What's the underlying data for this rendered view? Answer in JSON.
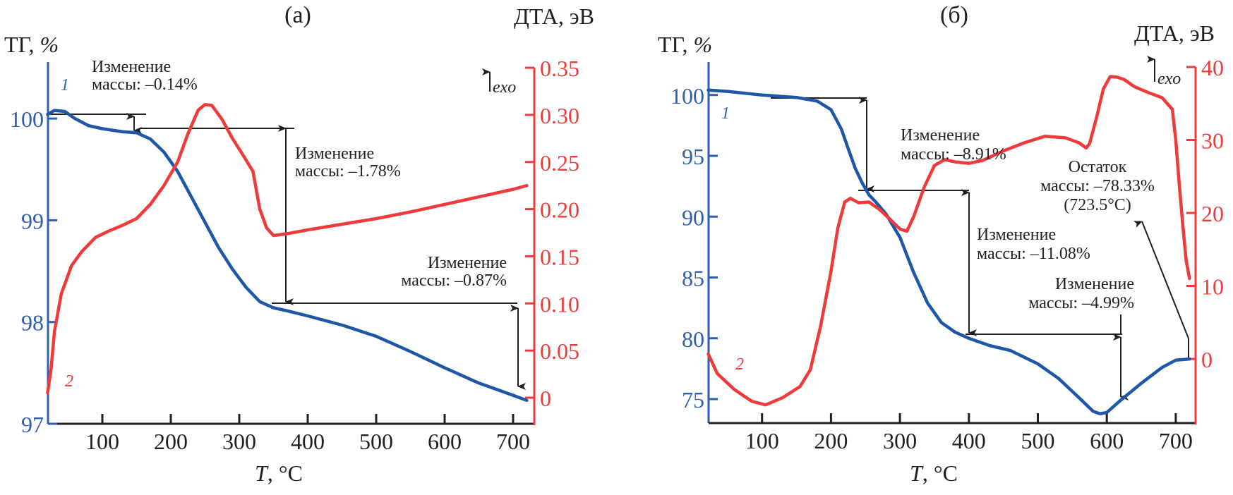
{
  "chart_data": [
    {
      "type": "line",
      "panel_label": "(a)",
      "title": "(a)",
      "xlabel": "T, °C",
      "xlabel_var": "T",
      "xlabel_unit": ", °C",
      "ylabel_left": "ТГ, %",
      "ylabel_left_name": "ТГ, ",
      "ylabel_left_unit": "%",
      "ylabel_right": "ДТА, эВ",
      "exo_label": "exo",
      "xlim": [
        20,
        725
      ],
      "ylim_left": [
        97,
        100.4
      ],
      "ylim_right": [
        -0.028,
        0.35
      ],
      "xticks": [
        100,
        200,
        300,
        400,
        500,
        600,
        700
      ],
      "yticks_left": [
        97,
        98,
        99,
        100
      ],
      "yticks_right": [
        "0",
        "0.05",
        "0.10",
        "0.15",
        "0.20",
        "0.25",
        "0.30",
        "0.35"
      ],
      "yticks_right_values": [
        0,
        0.05,
        0.1,
        0.15,
        0.2,
        0.25,
        0.3,
        0.35
      ],
      "grid": false,
      "colors": {
        "tg": "#1e56a8",
        "dta": "#ee3a3a",
        "annotation": "#231f20"
      },
      "series": [
        {
          "name": "ТГ",
          "curve_number": "1",
          "axis": "left",
          "x": [
            20,
            30,
            45,
            60,
            80,
            100,
            130,
            150,
            170,
            190,
            210,
            230,
            250,
            270,
            290,
            310,
            330,
            350,
            370,
            400,
            450,
            500,
            550,
            600,
            650,
            700,
            720
          ],
          "y": [
            100.04,
            100.08,
            100.07,
            100.0,
            99.93,
            99.9,
            99.87,
            99.86,
            99.8,
            99.67,
            99.48,
            99.23,
            98.98,
            98.73,
            98.52,
            98.34,
            98.2,
            98.14,
            98.11,
            98.06,
            97.97,
            97.86,
            97.71,
            97.55,
            97.4,
            97.28,
            97.23
          ]
        },
        {
          "name": "ДТА",
          "curve_number": "2",
          "axis": "right",
          "x": [
            20,
            25,
            30,
            40,
            55,
            70,
            90,
            110,
            130,
            150,
            170,
            190,
            210,
            225,
            240,
            250,
            260,
            275,
            290,
            305,
            320,
            330,
            340,
            350,
            370,
            400,
            450,
            500,
            550,
            600,
            650,
            700,
            720
          ],
          "y": [
            0.005,
            0.03,
            0.07,
            0.11,
            0.14,
            0.155,
            0.17,
            0.177,
            0.183,
            0.19,
            0.205,
            0.225,
            0.25,
            0.28,
            0.305,
            0.311,
            0.31,
            0.295,
            0.275,
            0.258,
            0.24,
            0.2,
            0.18,
            0.172,
            0.174,
            0.178,
            0.184,
            0.19,
            0.197,
            0.205,
            0.213,
            0.221,
            0.225
          ]
        }
      ],
      "annotations": [
        {
          "line1": "Изменение",
          "line2": "массы: –0.14%",
          "value": -0.14,
          "range_c": [
            20,
            160
          ]
        },
        {
          "line1": "Изменение",
          "line2": "массы: –1.78%",
          "value": -1.78,
          "range_c": [
            160,
            350
          ]
        },
        {
          "line1": "Изменение",
          "line2": "массы: –0.87%",
          "value": -0.87,
          "range_c": [
            350,
            720
          ]
        }
      ]
    },
    {
      "type": "line",
      "panel_label": "(б)",
      "title": "(б)",
      "xlabel": "T, °C",
      "xlabel_var": "T",
      "xlabel_unit": ", °C",
      "ylabel_left": "ТГ, %",
      "ylabel_left_name": "ТГ, ",
      "ylabel_left_unit": "%",
      "ylabel_right": "ДТА, эВ",
      "exo_label": "exo",
      "xlim": [
        22,
        725
      ],
      "ylim_left": [
        73,
        102
      ],
      "ylim_right": [
        -8.8,
        40
      ],
      "xticks": [
        100,
        200,
        300,
        400,
        500,
        600,
        700
      ],
      "yticks_left": [
        75,
        80,
        85,
        90,
        95,
        100
      ],
      "yticks_right": [
        "0",
        "10",
        "20",
        "30",
        "40"
      ],
      "yticks_right_values": [
        0,
        10,
        20,
        30,
        40
      ],
      "grid": false,
      "colors": {
        "tg": "#1e56a8",
        "dta": "#ee3a3a",
        "annotation": "#231f20"
      },
      "series": [
        {
          "name": "ТГ",
          "curve_number": "1",
          "axis": "left",
          "x": [
            22,
            50,
            100,
            150,
            180,
            200,
            215,
            225,
            235,
            245,
            255,
            265,
            280,
            300,
            320,
            340,
            360,
            380,
            400,
            430,
            460,
            500,
            530,
            560,
            580,
            590,
            600,
            620,
            650,
            680,
            700,
            720
          ],
          "y": [
            100.4,
            100.3,
            100.0,
            99.8,
            99.5,
            98.8,
            97.2,
            95.6,
            94.0,
            92.8,
            91.8,
            91.2,
            90.2,
            88.3,
            85.4,
            82.9,
            81.3,
            80.5,
            80.0,
            79.4,
            79.0,
            77.9,
            76.7,
            75.1,
            74.0,
            73.8,
            73.9,
            74.9,
            76.3,
            77.6,
            78.2,
            78.3
          ]
        },
        {
          "name": "ДТА",
          "curve_number": "2",
          "axis": "right",
          "x": [
            22,
            35,
            60,
            85,
            105,
            130,
            155,
            170,
            185,
            200,
            210,
            220,
            228,
            240,
            255,
            270,
            285,
            300,
            310,
            320,
            335,
            350,
            365,
            380,
            400,
            420,
            450,
            480,
            510,
            540,
            560,
            570,
            575,
            585,
            595,
            605,
            615,
            625,
            640,
            660,
            680,
            695,
            700,
            705,
            710,
            715,
            720
          ],
          "y": [
            0.7,
            -2.0,
            -4.2,
            -5.8,
            -6.3,
            -5.3,
            -3.8,
            -1.5,
            4.5,
            12.0,
            18.0,
            21.5,
            22.0,
            21.4,
            21.5,
            20.5,
            19.2,
            17.8,
            17.5,
            19.5,
            23.5,
            26.5,
            27.3,
            27.0,
            26.8,
            27.2,
            28.5,
            29.6,
            30.5,
            30.3,
            29.6,
            28.9,
            29.5,
            33.0,
            37.0,
            38.7,
            38.6,
            38.3,
            37.3,
            36.5,
            35.8,
            34.2,
            30.0,
            24.0,
            18.5,
            13.5,
            11.0
          ]
        }
      ],
      "annotations": [
        {
          "line1": "Изменение",
          "line2": "массы: –8.91%",
          "value": -8.91,
          "range_c": [
            120,
            250
          ]
        },
        {
          "line1": "Изменение",
          "line2": "массы: –11.08%",
          "value": -11.08,
          "range_c": [
            250,
            400
          ]
        },
        {
          "line1": "Изменение",
          "line2": "массы: –4.99%",
          "value": -4.99,
          "range_c": [
            400,
            620
          ]
        },
        {
          "line1": "Остаток",
          "line2": "массы: –78.33%",
          "line3": "(723.5°C)",
          "value": -78.33,
          "temperature_c": 723.5
        }
      ]
    }
  ]
}
